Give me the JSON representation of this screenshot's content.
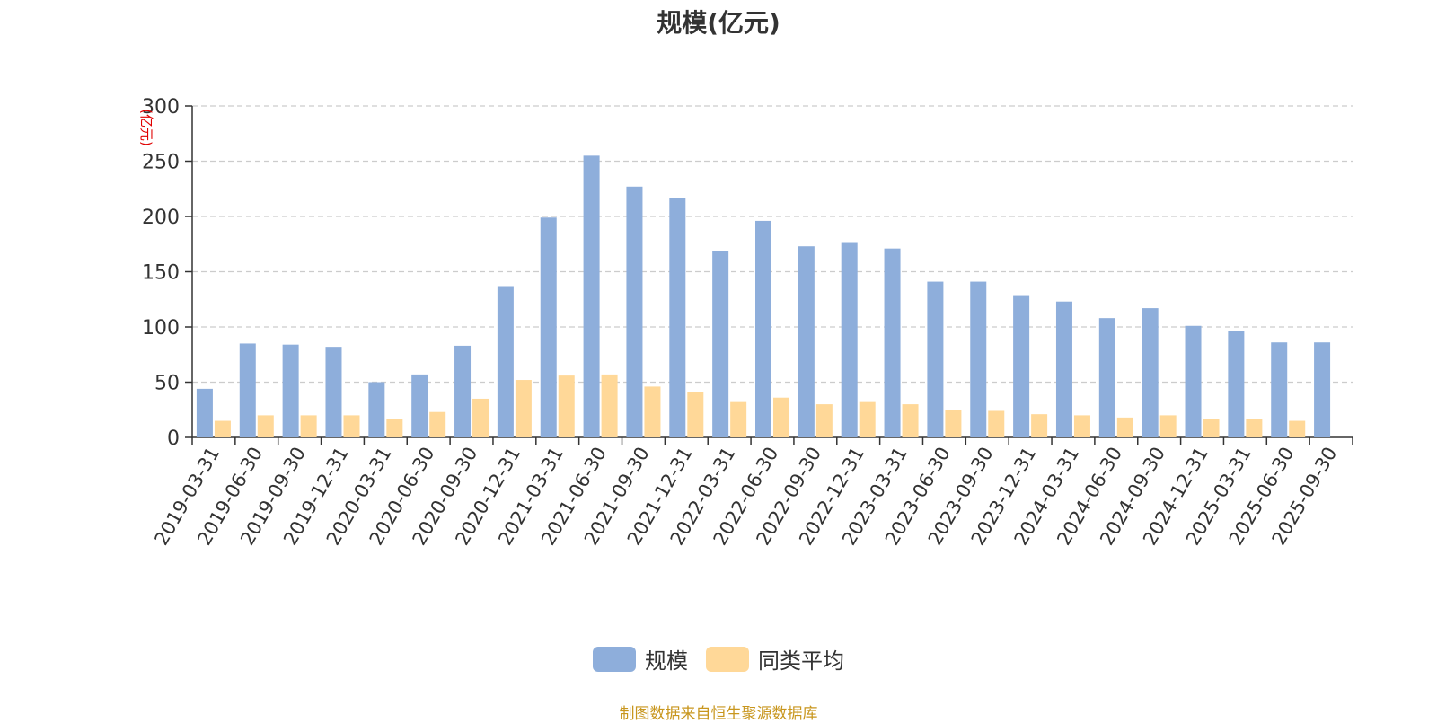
{
  "title": "规模(亿元)",
  "source": "制图数据来自恒生聚源数据库",
  "colors": {
    "scale": "#8eaedb",
    "avg": "#ffd898",
    "unit": "#e00000",
    "source": "#c8961e"
  },
  "chart_data": {
    "type": "bar",
    "title": "规模(亿元)",
    "ylabel": "(亿元)",
    "ylim": [
      0,
      300
    ],
    "yticks": [
      0,
      50,
      100,
      150,
      200,
      250,
      300
    ],
    "grid": true,
    "legend_position": "bottom",
    "categories": [
      "2019-03-31",
      "2019-06-30",
      "2019-09-30",
      "2019-12-31",
      "2020-03-31",
      "2020-06-30",
      "2020-09-30",
      "2020-12-31",
      "2021-03-31",
      "2021-06-30",
      "2021-09-30",
      "2021-12-31",
      "2022-03-31",
      "2022-06-30",
      "2022-09-30",
      "2022-12-31",
      "2023-03-31",
      "2023-06-30",
      "2023-09-30",
      "2023-12-31",
      "2024-03-31",
      "2024-06-30",
      "2024-09-30",
      "2024-12-31",
      "2025-03-31",
      "2025-06-30",
      "2025-09-30"
    ],
    "series": [
      {
        "name": "规模",
        "color": "#8eaedb",
        "values": [
          44,
          85,
          84,
          82,
          50,
          57,
          83,
          137,
          199,
          255,
          227,
          217,
          169,
          196,
          173,
          176,
          171,
          141,
          141,
          128,
          123,
          108,
          117,
          101,
          96,
          86,
          86
        ]
      },
      {
        "name": "同类平均",
        "color": "#ffd898",
        "values": [
          15,
          20,
          20,
          20,
          17,
          23,
          35,
          52,
          56,
          57,
          46,
          41,
          32,
          36,
          30,
          32,
          30,
          25,
          24,
          21,
          20,
          18,
          20,
          17,
          17,
          15,
          null
        ]
      }
    ]
  }
}
